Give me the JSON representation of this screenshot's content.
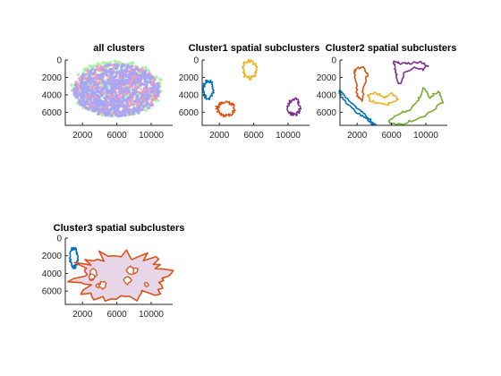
{
  "figure": {
    "background": "#ffffff"
  },
  "chart_data": [
    {
      "id": "all",
      "type": "scatter",
      "title": "all clusters",
      "xlim": [
        0,
        12500
      ],
      "ylim": [
        7500,
        0
      ],
      "xticks": [
        2000,
        6000,
        10000
      ],
      "yticks": [
        0,
        2000,
        4000,
        6000
      ],
      "clusters": [
        {
          "color": "#a8f2a8",
          "cx": 6000,
          "cy": 3300,
          "rx": 5400,
          "ry": 3200,
          "count": 500
        },
        {
          "color": "#f29ac0",
          "cx": 6000,
          "cy": 3400,
          "rx": 5000,
          "ry": 3000,
          "count": 420
        },
        {
          "color": "#a7a7f5",
          "cx": 6000,
          "cy": 3500,
          "rx": 5000,
          "ry": 3000,
          "count": 520
        }
      ]
    },
    {
      "id": "c1",
      "type": "line",
      "title": "Cluster1 spatial subclusters",
      "xlim": [
        0,
        12500
      ],
      "ylim": [
        7500,
        0
      ],
      "xticks": [
        2000,
        6000,
        10000
      ],
      "yticks": [
        0,
        2000,
        4000,
        6000
      ],
      "series": [
        {
          "color": "#0072BD",
          "cx": 700,
          "cy": 3400,
          "rx": 600,
          "ry": 1000
        },
        {
          "color": "#D95319",
          "cx": 2700,
          "cy": 5600,
          "rx": 1000,
          "ry": 800
        },
        {
          "color": "#EDB120",
          "cx": 5500,
          "cy": 1100,
          "rx": 800,
          "ry": 1000
        },
        {
          "color": "#7E2F8E",
          "cx": 10700,
          "cy": 5400,
          "rx": 700,
          "ry": 900
        }
      ]
    },
    {
      "id": "c2",
      "type": "line",
      "title": "Cluster2 spatial subclusters",
      "xlim": [
        0,
        12500
      ],
      "ylim": [
        7500,
        0
      ],
      "xticks": [
        2000,
        6000,
        10000
      ],
      "yticks": [
        0,
        2000,
        4000,
        6000
      ],
      "series": [
        {
          "color": "#0072BD",
          "points": [
            [
              0,
              3500
            ],
            [
              1000,
              4600
            ],
            [
              2200,
              5700
            ],
            [
              3200,
              6600
            ],
            [
              4100,
              7400
            ],
            [
              3700,
              7400
            ],
            [
              2800,
              6600
            ],
            [
              1800,
              5800
            ],
            [
              700,
              4800
            ],
            [
              0,
              4100
            ]
          ]
        },
        {
          "color": "#D95319",
          "points": [
            [
              1800,
              1000
            ],
            [
              2700,
              800
            ],
            [
              3200,
              1800
            ],
            [
              2800,
              3200
            ],
            [
              2500,
              4600
            ],
            [
              2000,
              4100
            ],
            [
              1900,
              2700
            ],
            [
              1600,
              1600
            ]
          ]
        },
        {
          "color": "#EDB120",
          "points": [
            [
              3300,
              4000
            ],
            [
              4200,
              3800
            ],
            [
              5200,
              4300
            ],
            [
              6000,
              3800
            ],
            [
              6700,
              4500
            ],
            [
              5600,
              5100
            ],
            [
              4400,
              4900
            ],
            [
              3500,
              4700
            ]
          ]
        },
        {
          "color": "#7E2F8E",
          "points": [
            [
              6300,
              200
            ],
            [
              7200,
              400
            ],
            [
              8200,
              400
            ],
            [
              9300,
              200
            ],
            [
              10200,
              600
            ],
            [
              9700,
              1200
            ],
            [
              8600,
              900
            ],
            [
              7500,
              1500
            ],
            [
              6900,
              2800
            ],
            [
              6600,
              1800
            ],
            [
              6400,
              800
            ]
          ]
        },
        {
          "color": "#77AC30",
          "points": [
            [
              5700,
              6900
            ],
            [
              7000,
              6100
            ],
            [
              8200,
              5700
            ],
            [
              9100,
              4700
            ],
            [
              9800,
              3200
            ],
            [
              10400,
              4400
            ],
            [
              11500,
              3500
            ],
            [
              11900,
              4800
            ],
            [
              10400,
              6100
            ],
            [
              8900,
              6800
            ],
            [
              7400,
              7300
            ],
            [
              6000,
              7400
            ]
          ]
        }
      ]
    },
    {
      "id": "c3",
      "type": "line",
      "title": "Cluster3 spatial subclusters",
      "xlim": [
        0,
        12500
      ],
      "ylim": [
        7500,
        0
      ],
      "xticks": [
        2000,
        6000,
        10000
      ],
      "yticks": [
        0,
        2000,
        4000,
        6000
      ],
      "series": [
        {
          "color": "#0072BD",
          "cx": 1000,
          "cy": 2200,
          "rx": 450,
          "ry": 1100
        },
        {
          "color": "#D95319",
          "cx": 6500,
          "cy": 4300,
          "rx": 5300,
          "ry": 2600,
          "fill": "#e6d6e8"
        }
      ]
    }
  ]
}
